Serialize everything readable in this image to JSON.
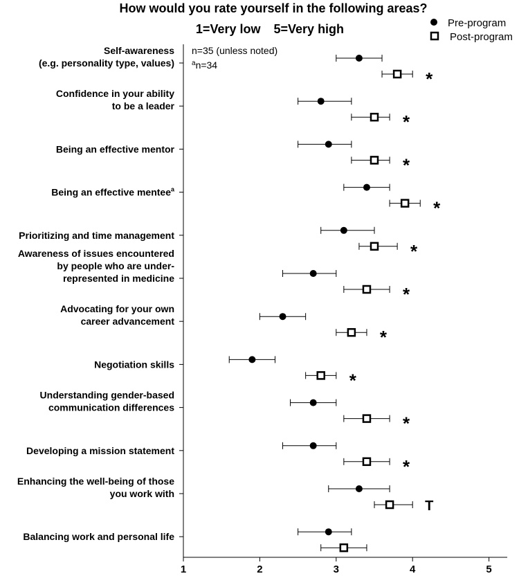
{
  "chart_data": {
    "type": "scatter",
    "title": "How would you rate yourself in the following areas?",
    "subtitle": [
      "1=Very low",
      "5=Very high"
    ],
    "notes": [
      "n=35 (unless noted)",
      "n=34"
    ],
    "note_superscript": "a",
    "xlim": [
      1,
      5.3
    ],
    "x_ticks": [
      1,
      2,
      3,
      4,
      5
    ],
    "legend": {
      "position": "top-right",
      "entries": [
        "Pre-program",
        "Post-program"
      ]
    },
    "categories": [
      {
        "lines": [
          "Self-awareness",
          "(e.g. personality type, values)"
        ],
        "superscript": "",
        "pre": {
          "mean": 3.3,
          "low": 3.0,
          "high": 3.6
        },
        "post": {
          "mean": 3.8,
          "low": 3.6,
          "high": 4.0
        },
        "significance": "*"
      },
      {
        "lines": [
          "Confidence in your ability",
          "to be a leader"
        ],
        "superscript": "",
        "pre": {
          "mean": 2.8,
          "low": 2.5,
          "high": 3.2
        },
        "post": {
          "mean": 3.5,
          "low": 3.2,
          "high": 3.7
        },
        "significance": "*"
      },
      {
        "lines": [
          "Being an effective mentor"
        ],
        "superscript": "",
        "pre": {
          "mean": 2.9,
          "low": 2.5,
          "high": 3.2
        },
        "post": {
          "mean": 3.5,
          "low": 3.2,
          "high": 3.7
        },
        "significance": "*"
      },
      {
        "lines": [
          "Being an effective mentee"
        ],
        "superscript": "a",
        "pre": {
          "mean": 3.4,
          "low": 3.1,
          "high": 3.7
        },
        "post": {
          "mean": 3.9,
          "low": 3.7,
          "high": 4.1
        },
        "significance": "*"
      },
      {
        "lines": [
          "Prioritizing and time management"
        ],
        "superscript": "",
        "pre": {
          "mean": 3.1,
          "low": 2.8,
          "high": 3.5
        },
        "post": {
          "mean": 3.5,
          "low": 3.3,
          "high": 3.8
        },
        "significance": "*"
      },
      {
        "lines": [
          "Awareness of issues encountered",
          "by people who are under-",
          "represented in medicine"
        ],
        "superscript": "",
        "pre": {
          "mean": 2.7,
          "low": 2.3,
          "high": 3.0
        },
        "post": {
          "mean": 3.4,
          "low": 3.1,
          "high": 3.7
        },
        "significance": "*"
      },
      {
        "lines": [
          "Advocating for your own",
          "career advancement"
        ],
        "superscript": "",
        "pre": {
          "mean": 2.3,
          "low": 2.0,
          "high": 2.6
        },
        "post": {
          "mean": 3.2,
          "low": 3.0,
          "high": 3.4
        },
        "significance": "*"
      },
      {
        "lines": [
          "Negotiation skills"
        ],
        "superscript": "",
        "pre": {
          "mean": 1.9,
          "low": 1.6,
          "high": 2.2
        },
        "post": {
          "mean": 2.8,
          "low": 2.6,
          "high": 3.0
        },
        "significance": "*"
      },
      {
        "lines": [
          "Understanding gender-based",
          "communication differences"
        ],
        "superscript": "",
        "pre": {
          "mean": 2.7,
          "low": 2.4,
          "high": 3.0
        },
        "post": {
          "mean": 3.4,
          "low": 3.1,
          "high": 3.7
        },
        "significance": "*"
      },
      {
        "lines": [
          "Developing a mission statement"
        ],
        "superscript": "",
        "pre": {
          "mean": 2.7,
          "low": 2.3,
          "high": 3.0
        },
        "post": {
          "mean": 3.4,
          "low": 3.1,
          "high": 3.7
        },
        "significance": "*"
      },
      {
        "lines": [
          "Enhancing the well-being of those",
          "you work with"
        ],
        "superscript": "",
        "pre": {
          "mean": 3.3,
          "low": 2.9,
          "high": 3.7
        },
        "post": {
          "mean": 3.7,
          "low": 3.5,
          "high": 4.0
        },
        "significance": "T"
      },
      {
        "lines": [
          "Balancing work and personal life"
        ],
        "superscript": "",
        "pre": {
          "mean": 2.9,
          "low": 2.5,
          "high": 3.2
        },
        "post": {
          "mean": 3.1,
          "low": 2.8,
          "high": 3.4
        },
        "significance": ""
      }
    ]
  }
}
